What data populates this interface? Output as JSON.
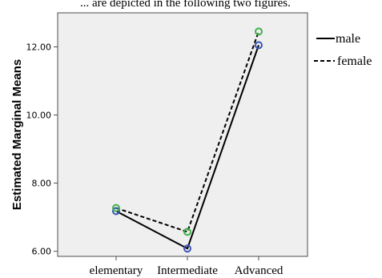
{
  "caption_partial": "... are depicted in the following two figures.",
  "chart_data": {
    "type": "line",
    "title": "",
    "xlabel": "",
    "ylabel": "Estimated Marginal Means",
    "categories": [
      "elementary",
      "Intermediate",
      "Advanced"
    ],
    "ylim": [
      5.85,
      13.0
    ],
    "yticks": [
      6.0,
      8.0,
      10.0,
      12.0
    ],
    "ytick_labels": [
      "6.00",
      "8.00",
      "10.00",
      "12.00"
    ],
    "grid": false,
    "legend_position": "right",
    "series": [
      {
        "name": "male",
        "values": [
          7.18,
          6.08,
          12.05
        ],
        "line_style": "solid",
        "marker_color": "#3a55b4"
      },
      {
        "name": "female",
        "values": [
          7.27,
          6.57,
          12.45
        ],
        "line_style": "dashed",
        "marker_color": "#3fb14a"
      }
    ],
    "plot_background": "#efefef"
  }
}
